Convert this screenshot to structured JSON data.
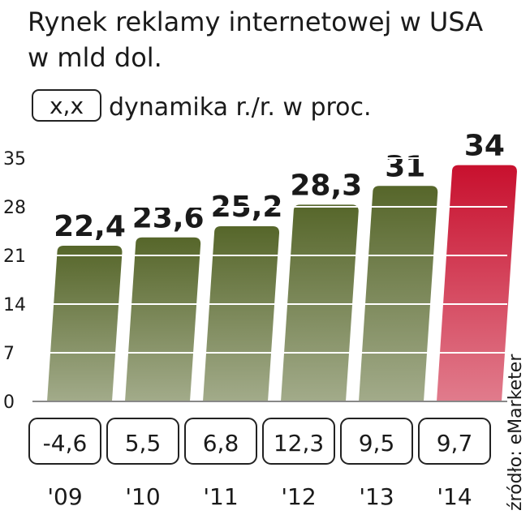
{
  "chart_data": {
    "type": "bar",
    "title": "Rynek reklamy internetowej w USA",
    "subtitle": "w mld dol.",
    "legend_box": "x,x",
    "legend_text": "dynamika r./r. w proc.",
    "source": "źródło: eMarketer",
    "categories": [
      "'09",
      "'10",
      "'11",
      "'12",
      "'13",
      "'14"
    ],
    "values": [
      22.4,
      23.6,
      25.2,
      28.3,
      31,
      34
    ],
    "value_labels": [
      "22,4",
      "23,6",
      "25,2",
      "28,3",
      "31",
      "34"
    ],
    "growth_labels": [
      "-4,6",
      "5,5",
      "6,8",
      "12,3",
      "9,5",
      "9,7"
    ],
    "colors": [
      "#56662a",
      "#56662a",
      "#56662a",
      "#56662a",
      "#56662a",
      "#c8102e"
    ],
    "ylim": [
      0,
      35
    ],
    "yticks": [
      0,
      7,
      14,
      21,
      28,
      35
    ],
    "grid": true
  }
}
